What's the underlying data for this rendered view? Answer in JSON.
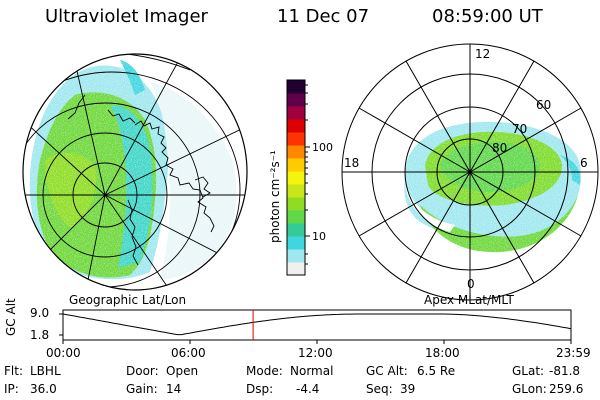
{
  "header": {
    "instrument": "Ultraviolet Imager",
    "date": "11 Dec 07",
    "time": "08:59:00 UT"
  },
  "left_map": {
    "caption": "Geographic Lat/Lon"
  },
  "right_map": {
    "caption": "Apex MLat/MLT",
    "mlt_labels": [
      "12",
      "18",
      "6",
      "0"
    ],
    "mlat_labels": [
      "60",
      "70",
      "80"
    ]
  },
  "colorbar": {
    "unit_label": "photon cm⁻²s⁻¹",
    "tick_labels": [
      "100",
      "10"
    ],
    "scale": "log",
    "colors": [
      "#f0f0f0",
      "#9fe8ef",
      "#3fd6e0",
      "#33cc99",
      "#5fd84a",
      "#8edd22",
      "#c8e61a",
      "#f4f40c",
      "#ffcc00",
      "#ff8800",
      "#ff3300",
      "#dd0000",
      "#a00040",
      "#60004a",
      "#200030"
    ]
  },
  "altitude_plot": {
    "ylabel": "GC Alt",
    "yticks": [
      "9.0",
      "1.8"
    ],
    "xticks": [
      "00:00",
      "06:00",
      "12:00",
      "18:00",
      "23:59"
    ],
    "marker_hour": 8.98,
    "marker_color": "#dd0000"
  },
  "footer": {
    "row1": [
      {
        "label": "Flt:",
        "value": "LBHL"
      },
      {
        "label": "Door:",
        "value": "Open"
      },
      {
        "label": "Mode:",
        "value": "Normal"
      },
      {
        "label": "GC Alt:",
        "value": "6.5 Re"
      },
      {
        "label": "GLat:",
        "value": "-81.8"
      }
    ],
    "row2": [
      {
        "label": "IP:",
        "value": "36.0"
      },
      {
        "label": "Gain:",
        "value": "14"
      },
      {
        "label": "Dsp:",
        "value": "-4.4"
      },
      {
        "label": "Seq:",
        "value": "39"
      },
      {
        "label": "GLon:",
        "value": "259.6"
      }
    ]
  }
}
